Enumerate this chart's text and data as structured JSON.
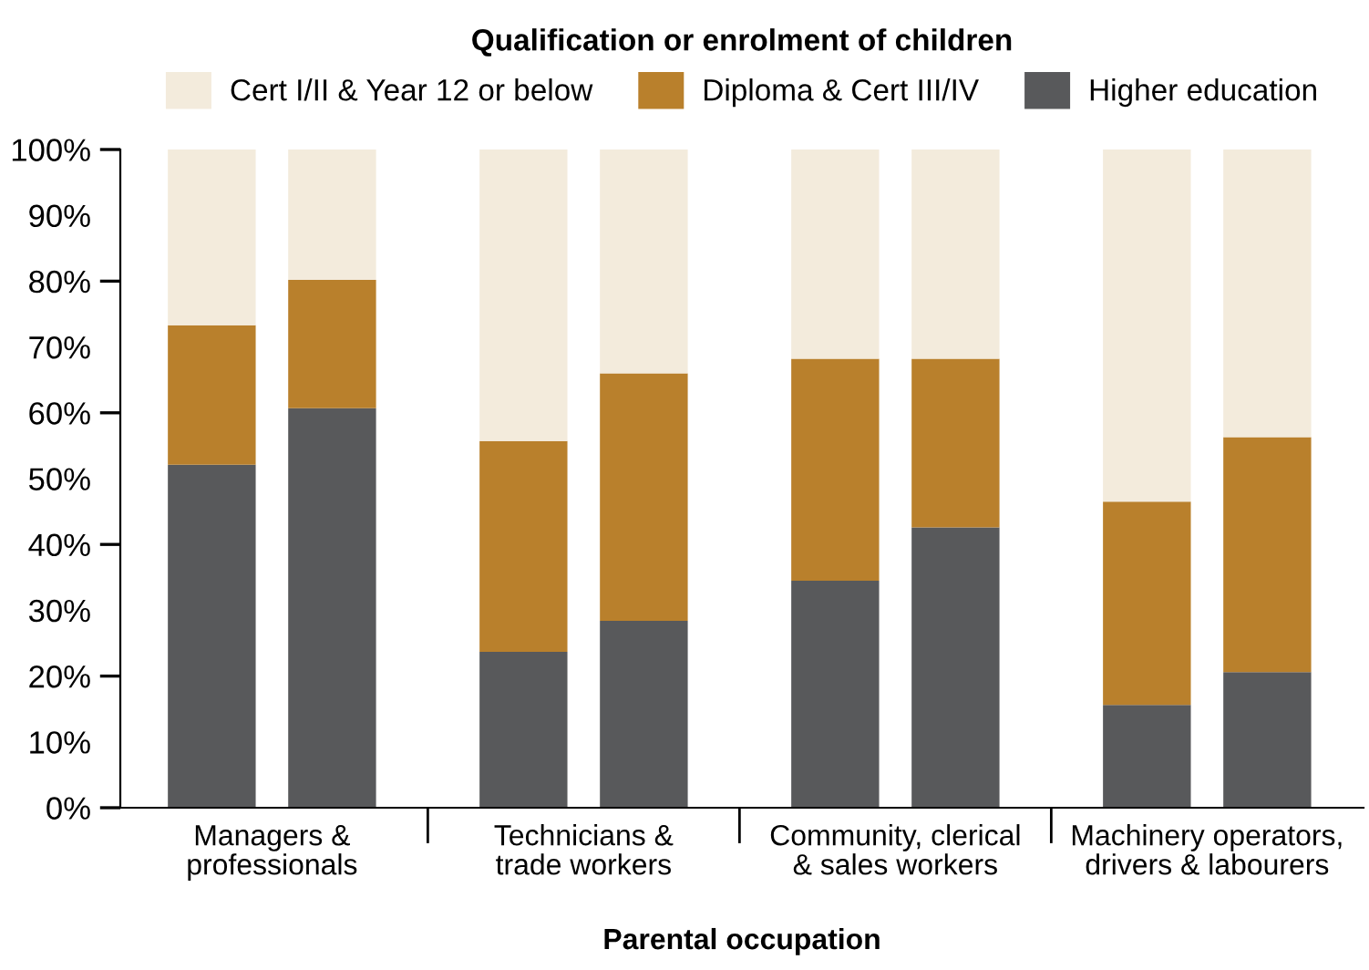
{
  "chart_data": {
    "type": "bar",
    "stacked": true,
    "legend_title": "Qualification or enrolment of children",
    "xlabel": "Parental occupation",
    "categories": [
      null,
      null,
      null,
      null,
      null,
      null,
      null,
      null
    ],
    "annotations": [
      "Managers &\nprofessionals",
      "Technicians &\ntrade workers",
      "Community, clerical\n& sales workers",
      "Machinery operators,\ndrivers & labourers"
    ],
    "series": [
      {
        "name": "Higher education",
        "color": "#58595b",
        "values": [
          52.1,
          60.7,
          23.7,
          28.4,
          34.5,
          42.6,
          15.6,
          20.6
        ]
      },
      {
        "name": "Diploma & Cert III/IV",
        "color": "#b9802c",
        "values": [
          21.2,
          19.5,
          32.0,
          37.6,
          33.7,
          25.6,
          30.9,
          35.7
        ]
      },
      {
        "name": "Cert I/II & Year 12 or below",
        "color": "#f3ebdc",
        "values": [
          26.7,
          19.8,
          44.3,
          34.0,
          31.8,
          31.8,
          53.5,
          43.7
        ]
      }
    ],
    "ylim": [
      0,
      100
    ],
    "yticks": [
      {
        "value": 0,
        "label": "0%"
      },
      {
        "value": 10,
        "label": "10%"
      },
      {
        "value": 20,
        "label": "20%"
      },
      {
        "value": 30,
        "label": "30%"
      },
      {
        "value": 40,
        "label": "40%"
      },
      {
        "value": 50,
        "label": "50%"
      },
      {
        "value": 60,
        "label": "60%"
      },
      {
        "value": 70,
        "label": "70%"
      },
      {
        "value": 80,
        "label": "80%"
      },
      {
        "value": 90,
        "label": "90%"
      },
      {
        "value": 100,
        "label": "100%"
      }
    ],
    "legend": "top",
    "grid": false
  }
}
